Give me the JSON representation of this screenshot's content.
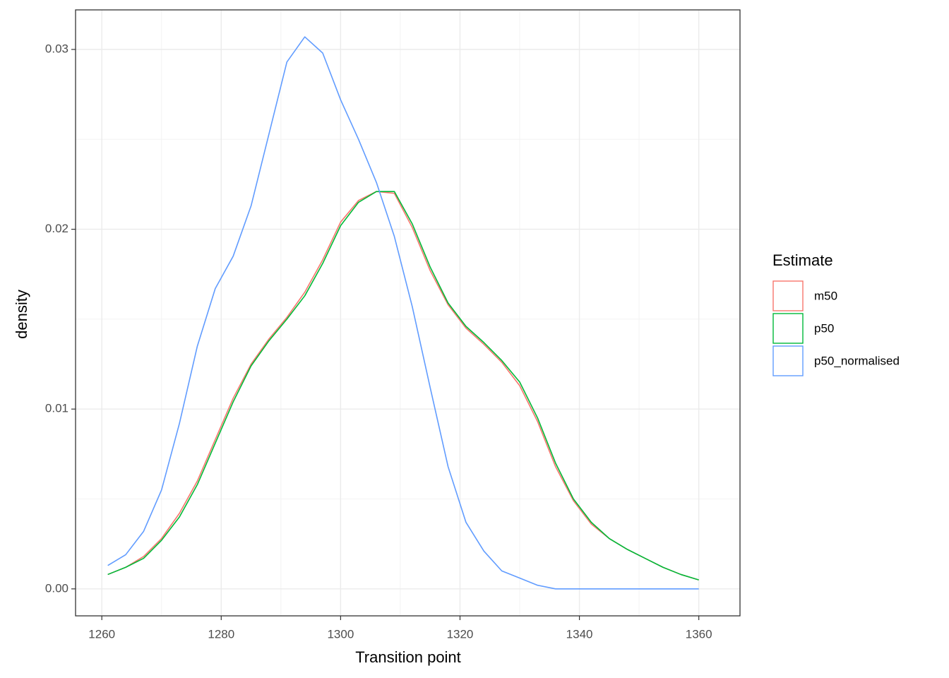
{
  "chart_data": {
    "type": "line",
    "x_label": "Transition point",
    "y_label": "density",
    "legend_title": "Estimate",
    "legend_position": "right",
    "grid": true,
    "minor_grid": true,
    "xlim": [
      1255.6,
      1366.9
    ],
    "ylim": [
      -0.0015,
      0.0322
    ],
    "xticks": [
      1260,
      1280,
      1300,
      1320,
      1340,
      1360
    ],
    "yticks": [
      {
        "value": 0,
        "label": "0.00"
      },
      {
        "value": 0.01,
        "label": "0.01"
      },
      {
        "value": 0.02,
        "label": "0.02"
      },
      {
        "value": 0.03,
        "label": "0.03"
      }
    ],
    "x": [
      1261,
      1264,
      1267,
      1270,
      1273,
      1276,
      1279,
      1282,
      1285,
      1288,
      1291,
      1294,
      1297,
      1300,
      1303,
      1306,
      1309,
      1312,
      1315,
      1318,
      1321,
      1324,
      1327,
      1330,
      1333,
      1336,
      1339,
      1342,
      1345,
      1348,
      1351,
      1354,
      1357,
      1360
    ],
    "series": [
      {
        "name": "m50",
        "color": "#f8766d",
        "values": [
          0.0008,
          0.0012,
          0.0018,
          0.0028,
          0.0042,
          0.006,
          0.0083,
          0.0106,
          0.0125,
          0.0139,
          0.0151,
          0.0165,
          0.0183,
          0.0204,
          0.0216,
          0.0221,
          0.022,
          0.0201,
          0.0177,
          0.0158,
          0.0145,
          0.0136,
          0.0126,
          0.0113,
          0.0093,
          0.0068,
          0.0049,
          0.0036,
          0.0028,
          0.0022,
          0.0017,
          0.0012,
          0.0008,
          0.0005
        ]
      },
      {
        "name": "p50",
        "color": "#00ba38",
        "values": [
          0.0008,
          0.0012,
          0.0017,
          0.0027,
          0.004,
          0.0058,
          0.0081,
          0.0104,
          0.0124,
          0.0138,
          0.015,
          0.0163,
          0.0181,
          0.0202,
          0.0215,
          0.0221,
          0.0221,
          0.0203,
          0.0179,
          0.0159,
          0.0146,
          0.0137,
          0.0127,
          0.0115,
          0.0095,
          0.007,
          0.005,
          0.0037,
          0.0028,
          0.0022,
          0.0017,
          0.0012,
          0.0008,
          0.0005
        ]
      },
      {
        "name": "p50_normalised",
        "color": "#619cff",
        "values": [
          0.0013,
          0.0019,
          0.0032,
          0.0055,
          0.0092,
          0.0135,
          0.0167,
          0.0185,
          0.0213,
          0.0253,
          0.0293,
          0.0307,
          0.0298,
          0.0272,
          0.025,
          0.0226,
          0.0196,
          0.0157,
          0.0112,
          0.0068,
          0.0037,
          0.0021,
          0.001,
          0.0006,
          0.0002,
          0,
          0,
          0,
          0,
          0,
          0,
          0,
          0,
          0
        ]
      }
    ]
  }
}
